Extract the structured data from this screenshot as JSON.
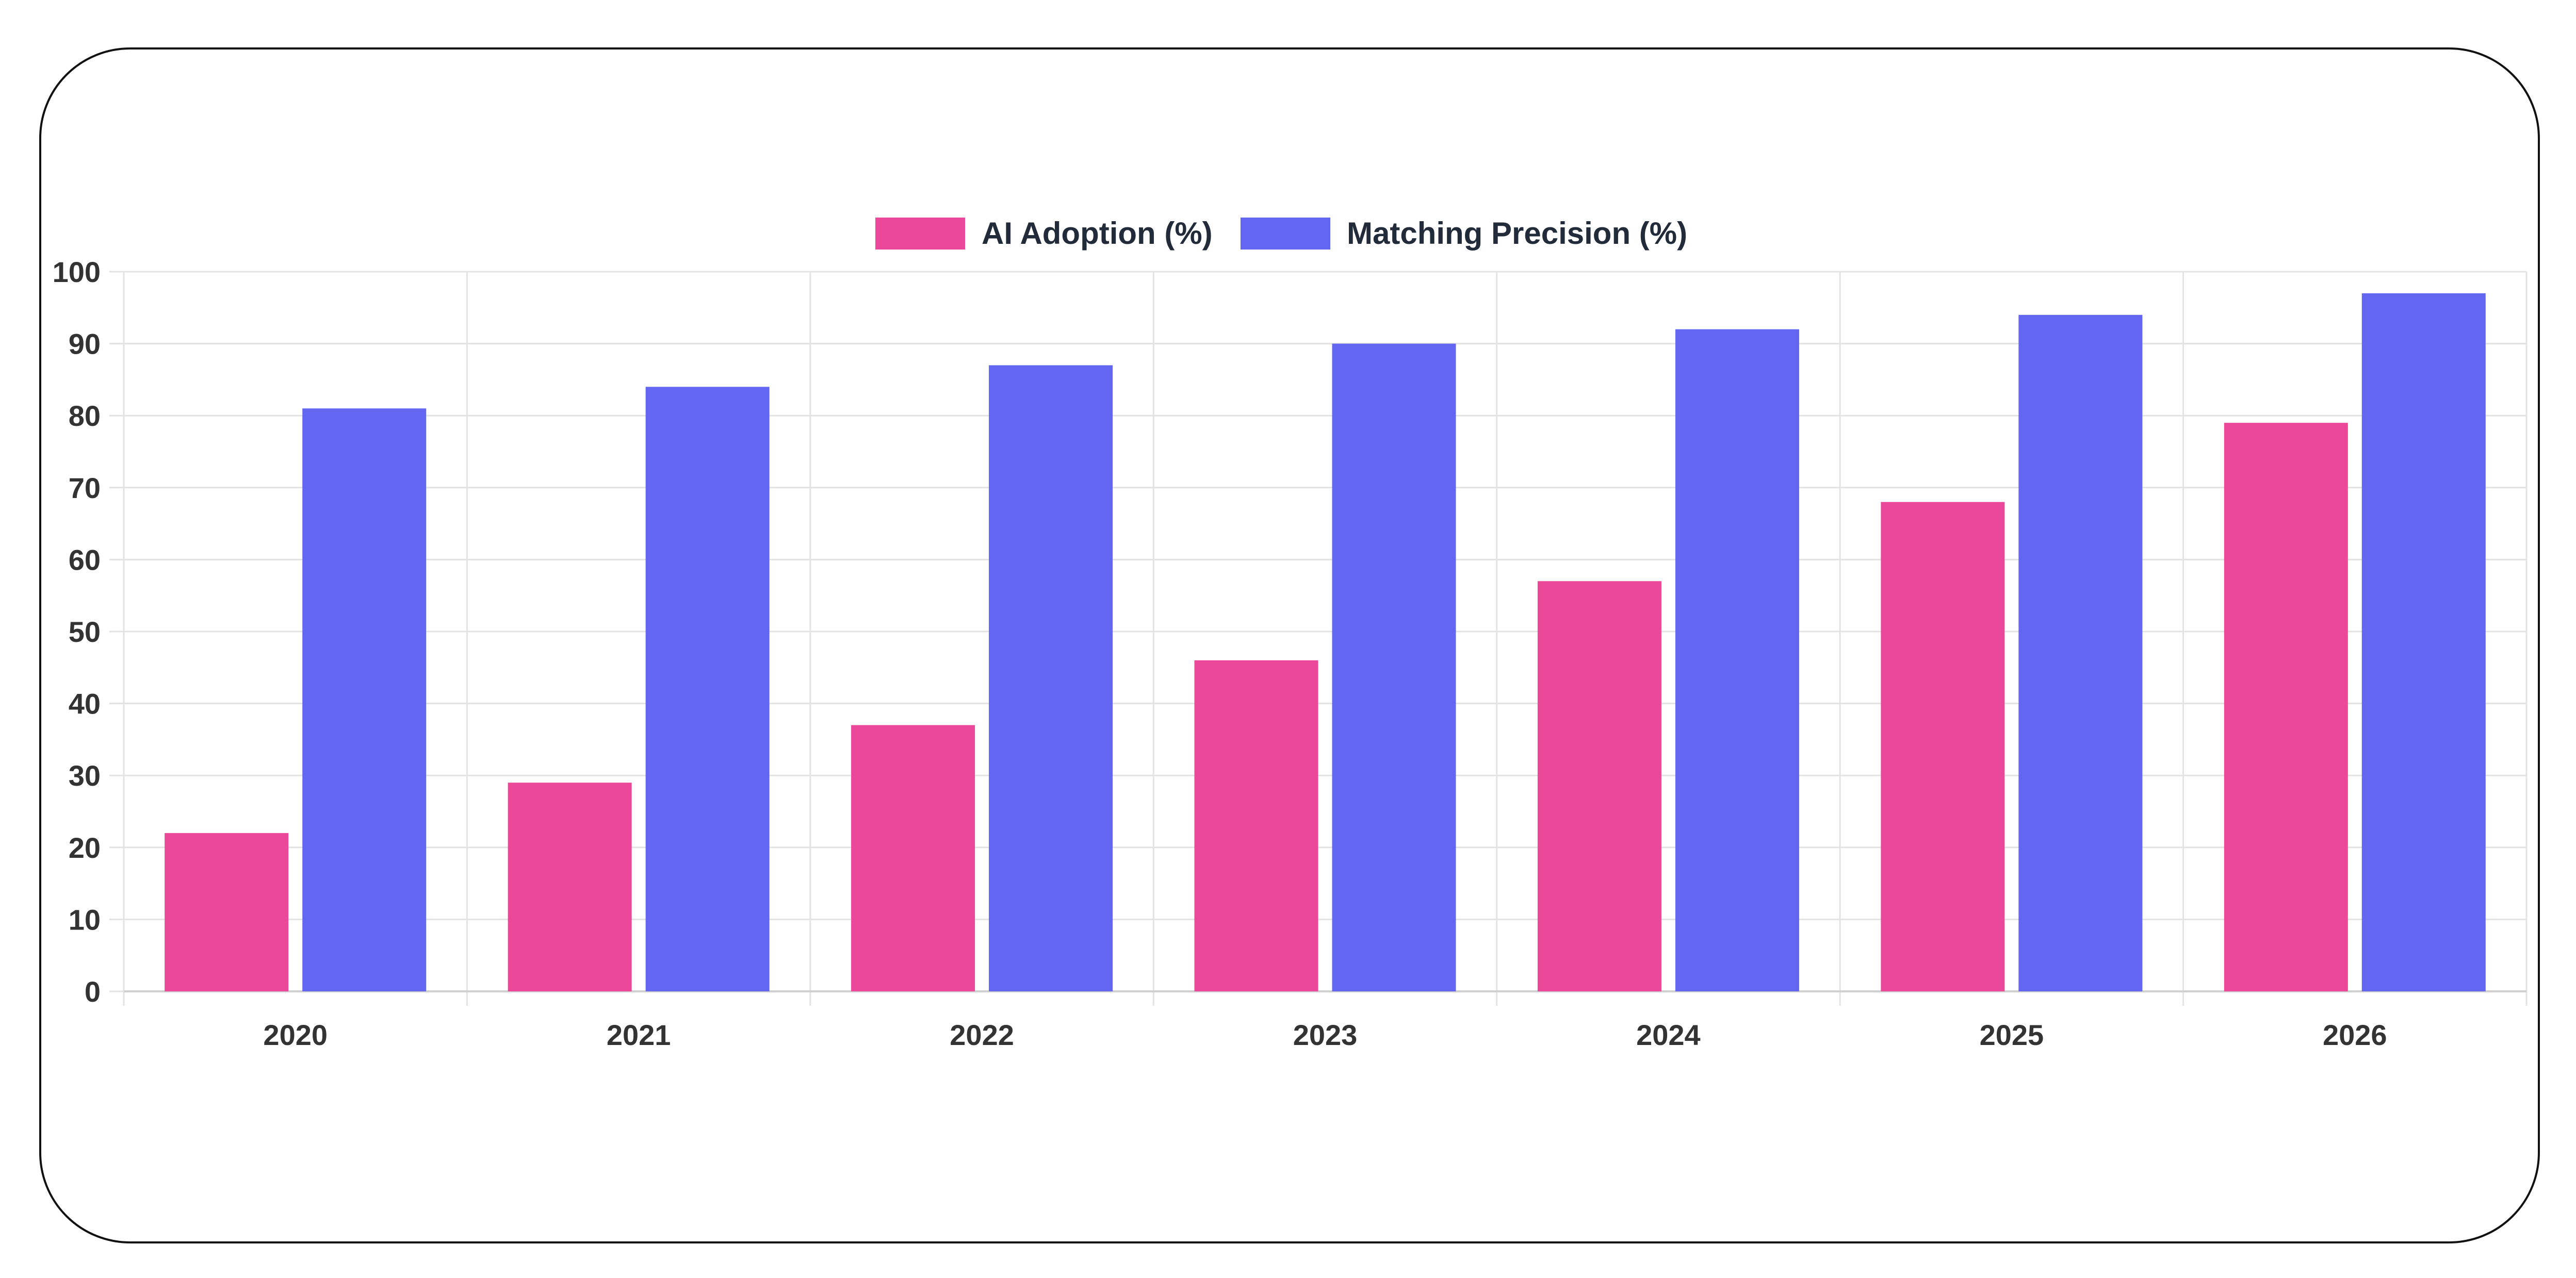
{
  "chart_data": {
    "type": "bar",
    "categories": [
      "2020",
      "2021",
      "2022",
      "2023",
      "2024",
      "2025",
      "2026"
    ],
    "series": [
      {
        "name": "AI Adoption (%)",
        "color": "#ec4899",
        "values": [
          22,
          29,
          37,
          46,
          57,
          68,
          79
        ]
      },
      {
        "name": "Matching Precision (%)",
        "color": "#6366f1",
        "values": [
          81,
          84,
          87,
          90,
          92,
          94,
          97
        ]
      }
    ],
    "ylim": [
      0,
      100
    ],
    "yticks": [
      0,
      10,
      20,
      30,
      40,
      50,
      60,
      70,
      80,
      90,
      100
    ],
    "grid": true,
    "legend_position": "top-center",
    "title": "",
    "xlabel": "",
    "ylabel": ""
  }
}
